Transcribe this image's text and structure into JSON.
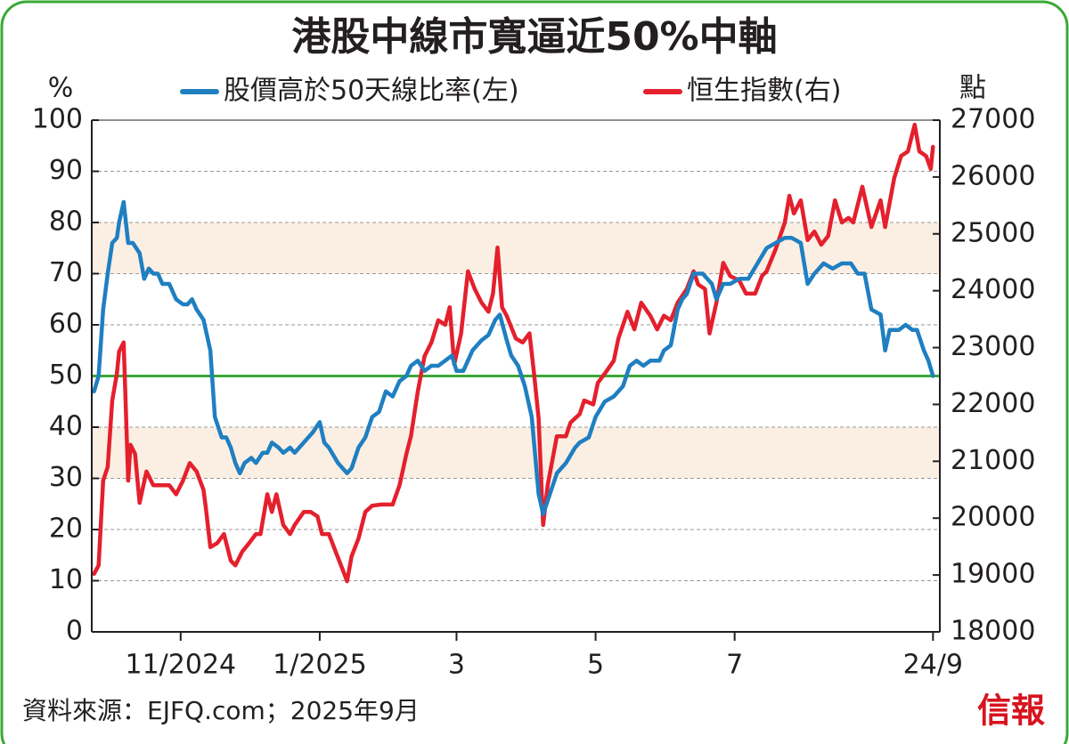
{
  "chart_data": {
    "type": "line",
    "title": "港股中線市寬逼近50%中軸",
    "y_label": "%",
    "y2_label": "點",
    "source": "資料來源：EJFQ.com；2025年9月",
    "logo": "信報",
    "xlim": [
      0,
      372
    ],
    "xticks": [
      {
        "value": 39,
        "label": "11/2024"
      },
      {
        "value": 100,
        "label": "1/2025"
      },
      {
        "value": 160,
        "label": "3"
      },
      {
        "value": 221,
        "label": "5"
      },
      {
        "value": 282,
        "label": "7"
      },
      {
        "value": 369,
        "label": "24/9"
      }
    ],
    "ylim": [
      0,
      100
    ],
    "yticks": [
      0,
      10,
      20,
      30,
      40,
      50,
      60,
      70,
      80,
      90,
      100
    ],
    "y2lim": [
      18000,
      27000
    ],
    "y2ticks": [
      18000,
      19000,
      20000,
      21000,
      22000,
      23000,
      24000,
      25000,
      26000,
      27000
    ],
    "grid": true,
    "shaded_ranges": [
      [
        30,
        40
      ],
      [
        70,
        80
      ]
    ],
    "shade_color": "#fbefe4",
    "reference_line": 50,
    "reference_color": "#3aa935",
    "series": [
      {
        "name": "股價高於50天線比率(左)",
        "color": "#1f7fc1",
        "axis": "y",
        "x": [
          1,
          3,
          5,
          7,
          9,
          11,
          12,
          14,
          16,
          18,
          21,
          23,
          25,
          27,
          29,
          31,
          34,
          37,
          40,
          42,
          44,
          46,
          49,
          52,
          54,
          57,
          59,
          61,
          63,
          65,
          67,
          70,
          72,
          75,
          77,
          79,
          82,
          84,
          87,
          89,
          93,
          97,
          100,
          102,
          104,
          108,
          112,
          114,
          117,
          120,
          123,
          126,
          129,
          132,
          135,
          138,
          140,
          143,
          146,
          149,
          152,
          155,
          158,
          160,
          163,
          167,
          171,
          174,
          177,
          179,
          182,
          184,
          187,
          190,
          193,
          196,
          198,
          201,
          204,
          208,
          212,
          214,
          218,
          221,
          225,
          229,
          233,
          236,
          239,
          242,
          245,
          249,
          251,
          254,
          257,
          259,
          261,
          264,
          268,
          272,
          274,
          277,
          280,
          284,
          288,
          292,
          296,
          300,
          304,
          307,
          311,
          314,
          317,
          321,
          325,
          329,
          333,
          336,
          339,
          342,
          346,
          348,
          350,
          354,
          357,
          360,
          362,
          365,
          367,
          369
        ],
        "values": [
          47,
          50,
          63,
          70,
          76,
          77,
          80,
          84,
          76,
          76,
          74,
          69,
          71,
          70,
          70,
          68,
          68,
          65,
          64,
          64,
          65,
          63,
          61,
          55,
          42,
          38,
          38,
          36,
          33,
          31,
          33,
          34,
          33,
          35,
          35,
          37,
          36,
          35,
          36,
          35,
          37,
          39,
          41,
          37,
          36,
          33,
          31,
          32,
          36,
          38,
          42,
          43,
          47,
          46,
          49,
          50,
          52,
          53,
          51,
          52,
          52,
          53,
          54,
          51,
          51,
          55,
          57,
          58,
          61,
          62,
          57,
          54,
          52,
          48,
          42,
          27,
          23,
          27,
          31,
          33,
          36,
          37,
          38,
          42,
          45,
          46,
          48,
          52,
          53,
          52,
          53,
          53,
          55,
          56,
          63,
          65,
          66,
          70,
          70,
          68,
          65,
          68,
          68,
          69,
          69,
          72,
          75,
          76,
          77,
          77,
          76,
          68,
          70,
          72,
          71,
          72,
          72,
          70,
          70,
          63,
          62,
          55,
          59,
          59,
          60,
          59,
          59,
          55,
          53,
          50
        ]
      },
      {
        "name": "恒生指數(右)",
        "color": "#e4202d",
        "axis": "y2",
        "x": [
          1,
          3,
          5,
          7,
          9,
          11,
          12,
          14,
          16,
          17,
          19,
          21,
          24,
          27,
          30,
          34,
          37,
          40,
          43,
          46,
          49,
          50,
          52,
          55,
          58,
          61,
          63,
          66,
          69,
          72,
          74,
          77,
          79,
          81,
          84,
          87,
          89,
          93,
          96,
          99,
          101,
          104,
          107,
          110,
          112,
          114,
          117,
          120,
          123,
          127,
          132,
          135,
          138,
          140,
          143,
          146,
          149,
          152,
          155,
          157,
          159,
          162,
          165,
          168,
          171,
          174,
          176,
          178,
          180,
          182,
          186,
          189,
          192,
          194,
          196,
          198,
          200,
          204,
          208,
          210,
          214,
          216,
          220,
          222,
          225,
          229,
          231,
          235,
          238,
          241,
          245,
          248,
          251,
          254,
          257,
          261,
          264,
          266,
          269,
          271,
          274,
          277,
          280,
          284,
          287,
          291,
          294,
          296,
          300,
          304,
          306,
          308,
          311,
          314,
          317,
          320,
          323,
          326,
          329,
          332,
          334,
          338,
          342,
          346,
          348,
          352,
          355,
          358,
          361,
          363,
          366,
          368,
          369
        ],
        "values": [
          19020,
          19170,
          20660,
          20900,
          22070,
          22540,
          22930,
          23090,
          20660,
          21290,
          21130,
          20270,
          20820,
          20580,
          20580,
          20580,
          20420,
          20660,
          20970,
          20820,
          20500,
          20190,
          19490,
          19560,
          19720,
          19250,
          19170,
          19410,
          19560,
          19720,
          19720,
          20420,
          20110,
          20420,
          19880,
          19720,
          19880,
          20110,
          20110,
          20030,
          19720,
          19720,
          19410,
          19100,
          18890,
          19330,
          19640,
          20110,
          20220,
          20240,
          20240,
          20580,
          21130,
          21440,
          22230,
          22850,
          23090,
          23480,
          23400,
          23710,
          22700,
          23250,
          24340,
          24030,
          23790,
          23630,
          23950,
          24760,
          23710,
          23560,
          23160,
          23090,
          23250,
          22540,
          21760,
          19880,
          20580,
          21440,
          21440,
          21680,
          21830,
          22070,
          22000,
          22380,
          22540,
          22770,
          23160,
          23630,
          23320,
          23790,
          23560,
          23320,
          23560,
          23480,
          23790,
          24030,
          24340,
          24110,
          24030,
          23250,
          23790,
          24490,
          24260,
          24180,
          23950,
          23950,
          24260,
          24340,
          24730,
          25200,
          25670,
          25360,
          25590,
          24890,
          25040,
          24810,
          24960,
          25590,
          25200,
          25280,
          25200,
          25830,
          25120,
          25590,
          25120,
          25980,
          26370,
          26450,
          26920,
          26450,
          26370,
          26140,
          26530
        ]
      }
    ]
  }
}
